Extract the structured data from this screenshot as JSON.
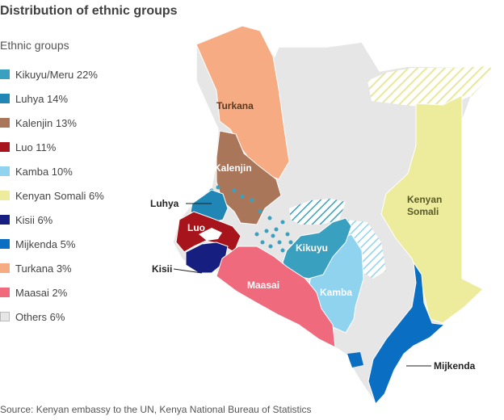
{
  "title": "Distribution of ethnic groups",
  "legend_title": "Ethnic groups",
  "legend": [
    {
      "label": "Kikuyu/Meru 22%",
      "color": "#3aa0c0"
    },
    {
      "label": "Luhya 14%",
      "color": "#1f86b6"
    },
    {
      "label": "Kalenjin 13%",
      "color": "#a9765a"
    },
    {
      "label": "Luo 11%",
      "color": "#a8141b"
    },
    {
      "label": "Kamba 10%",
      "color": "#8fd3ef"
    },
    {
      "label": "Kenyan Somali 6%",
      "color": "#ecec9c"
    },
    {
      "label": "Kisii 6%",
      "color": "#161e80"
    },
    {
      "label": "Mijkenda 5%",
      "color": "#0a6fc2"
    },
    {
      "label": "Turkana 3%",
      "color": "#f6ab82"
    },
    {
      "label": "Maasai 2%",
      "color": "#f06a7e"
    },
    {
      "label": "Others 6%",
      "color": "#e6e6e6"
    }
  ],
  "map_labels": {
    "turkana": "Turkana",
    "kalenjin": "Kalenjin",
    "luhya": "Luhya",
    "luo": "Luo",
    "kisii": "Kisii",
    "kikuyu": "Kikuyu",
    "kamba": "Kamba",
    "maasai": "Maasai",
    "kenyan_somali_line1": "Kenyan",
    "kenyan_somali_line2": "Somali",
    "mijkenda": "Mijkenda"
  },
  "source": "Source: Kenyan embassy to the UN, Kenya National Bureau of Statistics"
}
